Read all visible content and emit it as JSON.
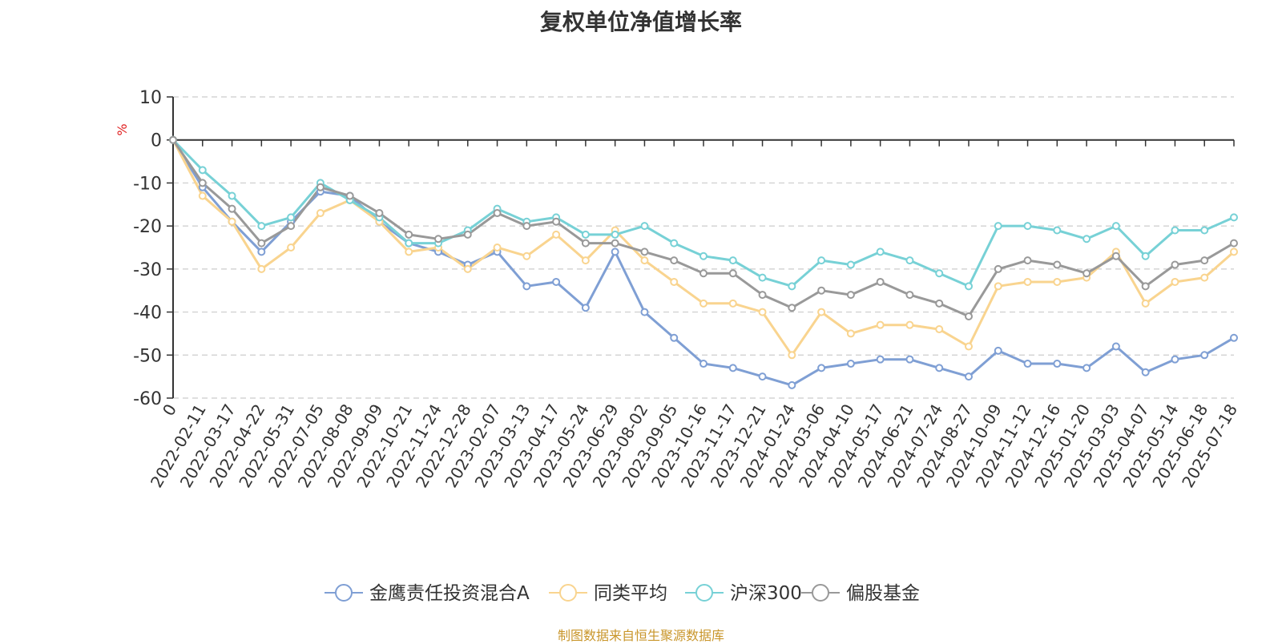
{
  "title": "复权单位净值增长率",
  "source_note": "制图数据来自恒生聚源数据库",
  "chart_data": {
    "type": "line",
    "title": "复权单位净值增长率",
    "ylabel": "%",
    "ylim": [
      -60,
      10
    ],
    "yticks": [
      10,
      0,
      -10,
      -20,
      -30,
      -40,
      -50,
      -60
    ],
    "grid": true,
    "legend_position": "bottom",
    "categories": [
      "0",
      "2022-02-11",
      "2022-03-17",
      "2022-04-22",
      "2022-05-31",
      "2022-07-05",
      "2022-08-08",
      "2022-09-09",
      "2022-10-21",
      "2022-11-24",
      "2022-12-28",
      "2023-02-07",
      "2023-03-13",
      "2023-04-17",
      "2023-05-24",
      "2023-06-29",
      "2023-08-02",
      "2023-09-05",
      "2023-10-16",
      "2023-11-17",
      "2023-12-21",
      "2024-01-24",
      "2024-03-06",
      "2024-04-10",
      "2024-05-17",
      "2024-06-21",
      "2024-07-24",
      "2024-08-27",
      "2024-10-09",
      "2024-11-12",
      "2024-12-16",
      "2025-01-20",
      "2025-03-03",
      "2025-04-07",
      "2025-05-14",
      "2025-06-18",
      "2025-07-18"
    ],
    "series": [
      {
        "name": "金鹰责任投资混合A",
        "color": "#7f9fd4",
        "values": [
          0,
          -11,
          -19,
          -26,
          -19,
          -12,
          -13,
          -19,
          -24,
          -26,
          -29,
          -26,
          -34,
          -33,
          -39,
          -26,
          -40,
          -46,
          -52,
          -53,
          -55,
          -57,
          -53,
          -52,
          -51,
          -51,
          -53,
          -55,
          -49,
          -52,
          -52,
          -53,
          -48,
          -54,
          -51,
          -50,
          -46
        ]
      },
      {
        "name": "同类平均",
        "color": "#f9d48f",
        "values": [
          0,
          -13,
          -19,
          -30,
          -25,
          -17,
          -14,
          -19,
          -26,
          -25,
          -30,
          -25,
          -27,
          -22,
          -28,
          -21,
          -28,
          -33,
          -38,
          -38,
          -40,
          -50,
          -40,
          -45,
          -43,
          -43,
          -44,
          -48,
          -34,
          -33,
          -33,
          -32,
          -26,
          -38,
          -33,
          -32,
          -26
        ]
      },
      {
        "name": "沪深300",
        "color": "#77d1d6",
        "values": [
          0,
          -7,
          -13,
          -20,
          -18,
          -10,
          -14,
          -18,
          -24,
          -24,
          -21,
          -16,
          -19,
          -18,
          -22,
          -22,
          -20,
          -24,
          -27,
          -28,
          -32,
          -34,
          -28,
          -29,
          -26,
          -28,
          -31,
          -34,
          -20,
          -20,
          -21,
          -23,
          -20,
          -27,
          -21,
          -21,
          -18
        ]
      },
      {
        "name": "偏股基金",
        "color": "#999999",
        "values": [
          0,
          -10,
          -16,
          -24,
          -20,
          -11,
          -13,
          -17,
          -22,
          -23,
          -22,
          -17,
          -20,
          -19,
          -24,
          -24,
          -26,
          -28,
          -31,
          -31,
          -36,
          -39,
          -35,
          -36,
          -33,
          -36,
          -38,
          -41,
          -30,
          -28,
          -29,
          -31,
          -27,
          -34,
          -29,
          -28,
          -24
        ]
      }
    ]
  }
}
